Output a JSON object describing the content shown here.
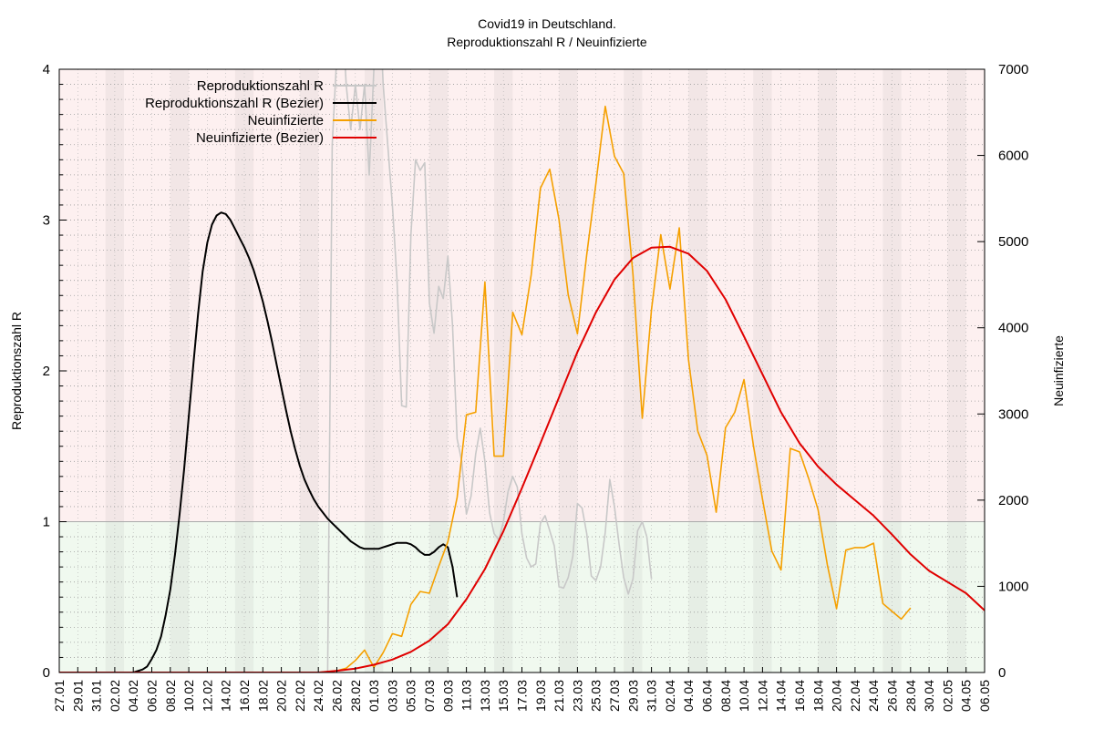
{
  "title_lines": [
    "Covid19 in Deutschland.",
    "Reproduktionszahl R / Neuinfizierte"
  ],
  "chart_data": {
    "type": "line",
    "x_tick_labels": [
      "27.01",
      "29.01",
      "31.01",
      "02.02",
      "04.02",
      "06.02",
      "08.02",
      "10.02",
      "12.02",
      "14.02",
      "16.02",
      "18.02",
      "20.02",
      "22.02",
      "24.02",
      "26.02",
      "28.02",
      "01.03",
      "03.03",
      "05.03",
      "07.03",
      "09.03",
      "11.03",
      "13.03",
      "15.03",
      "17.03",
      "19.03",
      "21.03",
      "23.03",
      "25.03",
      "27.03",
      "29.03",
      "31.03",
      "02.04",
      "04.04",
      "06.04",
      "08.04",
      "10.04",
      "12.04",
      "14.04",
      "16.04",
      "18.04",
      "20.04",
      "22.04",
      "24.04",
      "26.04",
      "28.04",
      "30.04",
      "02.05",
      "04.05",
      "06.05"
    ],
    "y_left": {
      "label": "Reproduktionszahl R",
      "min": 0,
      "max": 4,
      "ticks": [
        0,
        1,
        2,
        3,
        4
      ],
      "threshold": 1
    },
    "y_right": {
      "label": "Neuinfizierte",
      "min": 0,
      "max": 7000,
      "ticks": [
        0,
        1000,
        2000,
        3000,
        4000,
        5000,
        6000,
        7000
      ]
    },
    "grid": true,
    "legend_position": "top-left",
    "colors": {
      "zone_above": "#fdf0f0",
      "zone_below": "#f0f9ef",
      "weekend_band": "rgba(150,150,150,0.10)",
      "threshold_line": "#aaaaaa"
    },
    "series": [
      {
        "name": "Reproduktionszahl R",
        "axis": "left",
        "color": "#c8c8c8",
        "points": [
          [
            29,
            0
          ],
          [
            29.5,
            3.5
          ],
          [
            30,
            4.1
          ],
          [
            30.5,
            4.5
          ],
          [
            31,
            3.9
          ],
          [
            31.5,
            3.6
          ],
          [
            32,
            3.9
          ],
          [
            32.5,
            3.6
          ],
          [
            33,
            3.9
          ],
          [
            33.5,
            3.3
          ],
          [
            34,
            4.0
          ],
          [
            34.5,
            4.6
          ],
          [
            35,
            3.9
          ],
          [
            35.5,
            3.5
          ],
          [
            36,
            3.1
          ],
          [
            36.5,
            2.6
          ],
          [
            37,
            1.77
          ],
          [
            37.5,
            1.76
          ],
          [
            38,
            2.9
          ],
          [
            38.5,
            3.4
          ],
          [
            39,
            3.33
          ],
          [
            39.5,
            3.38
          ],
          [
            40,
            2.45
          ],
          [
            40.5,
            2.25
          ],
          [
            41,
            2.56
          ],
          [
            41.5,
            2.48
          ],
          [
            42,
            2.76
          ],
          [
            42.5,
            2.3
          ],
          [
            43,
            1.55
          ],
          [
            43.5,
            1.4
          ],
          [
            44,
            1.05
          ],
          [
            44.5,
            1.17
          ],
          [
            45,
            1.45
          ],
          [
            45.5,
            1.62
          ],
          [
            46,
            1.4
          ],
          [
            46.5,
            1.06
          ],
          [
            47,
            0.92
          ],
          [
            47.5,
            0.88
          ],
          [
            48,
            1.0
          ],
          [
            48.5,
            1.2
          ],
          [
            49,
            1.3
          ],
          [
            49.5,
            1.23
          ],
          [
            50,
            0.92
          ],
          [
            50.5,
            0.76
          ],
          [
            51,
            0.7
          ],
          [
            51.5,
            0.72
          ],
          [
            52,
            0.99
          ],
          [
            52.5,
            1.04
          ],
          [
            53,
            0.94
          ],
          [
            53.5,
            0.84
          ],
          [
            54,
            0.57
          ],
          [
            54.5,
            0.56
          ],
          [
            55,
            0.63
          ],
          [
            55.5,
            0.77
          ],
          [
            56,
            1.12
          ],
          [
            56.5,
            1.09
          ],
          [
            57,
            0.92
          ],
          [
            57.5,
            0.64
          ],
          [
            58,
            0.61
          ],
          [
            58.5,
            0.7
          ],
          [
            59,
            0.93
          ],
          [
            59.5,
            1.28
          ],
          [
            60,
            1.1
          ],
          [
            60.5,
            0.85
          ],
          [
            61,
            0.63
          ],
          [
            61.5,
            0.52
          ],
          [
            62,
            0.62
          ],
          [
            62.5,
            0.94
          ],
          [
            63,
            1.0
          ],
          [
            63.5,
            0.9
          ],
          [
            64,
            0.62
          ]
        ]
      },
      {
        "name": "Reproduktionszahl R (Bezier)",
        "axis": "left",
        "color": "#000000",
        "points": [
          [
            0,
            0
          ],
          [
            5,
            0
          ],
          [
            8,
            0
          ],
          [
            9,
            0.02
          ],
          [
            9.5,
            0.04
          ],
          [
            10,
            0.09
          ],
          [
            10.5,
            0.15
          ],
          [
            11,
            0.24
          ],
          [
            11.5,
            0.38
          ],
          [
            12,
            0.55
          ],
          [
            12.5,
            0.78
          ],
          [
            13,
            1.05
          ],
          [
            13.5,
            1.35
          ],
          [
            14,
            1.7
          ],
          [
            14.5,
            2.05
          ],
          [
            15,
            2.38
          ],
          [
            15.5,
            2.66
          ],
          [
            16,
            2.85
          ],
          [
            16.5,
            2.97
          ],
          [
            17,
            3.03
          ],
          [
            17.5,
            3.05
          ],
          [
            18,
            3.04
          ],
          [
            18.5,
            3.0
          ],
          [
            19,
            2.94
          ],
          [
            19.5,
            2.88
          ],
          [
            20,
            2.82
          ],
          [
            20.5,
            2.75
          ],
          [
            21,
            2.67
          ],
          [
            21.5,
            2.57
          ],
          [
            22,
            2.46
          ],
          [
            22.5,
            2.33
          ],
          [
            23,
            2.19
          ],
          [
            23.5,
            2.04
          ],
          [
            24,
            1.89
          ],
          [
            24.5,
            1.74
          ],
          [
            25,
            1.6
          ],
          [
            25.5,
            1.48
          ],
          [
            26,
            1.37
          ],
          [
            26.5,
            1.28
          ],
          [
            27,
            1.21
          ],
          [
            27.5,
            1.15
          ],
          [
            28,
            1.1
          ],
          [
            28.5,
            1.06
          ],
          [
            29,
            1.02
          ],
          [
            29.5,
            0.99
          ],
          [
            30,
            0.96
          ],
          [
            30.5,
            0.93
          ],
          [
            31,
            0.9
          ],
          [
            31.5,
            0.87
          ],
          [
            32,
            0.85
          ],
          [
            32.5,
            0.83
          ],
          [
            33,
            0.82
          ],
          [
            33.5,
            0.82
          ],
          [
            34,
            0.82
          ],
          [
            34.5,
            0.82
          ],
          [
            35,
            0.83
          ],
          [
            35.5,
            0.84
          ],
          [
            36,
            0.85
          ],
          [
            36.5,
            0.86
          ],
          [
            37,
            0.86
          ],
          [
            37.5,
            0.86
          ],
          [
            38,
            0.85
          ],
          [
            38.5,
            0.83
          ],
          [
            39,
            0.8
          ],
          [
            39.5,
            0.78
          ],
          [
            40,
            0.78
          ],
          [
            40.5,
            0.8
          ],
          [
            41,
            0.83
          ],
          [
            41.5,
            0.85
          ],
          [
            42,
            0.83
          ],
          [
            42.5,
            0.7
          ],
          [
            43,
            0.5
          ]
        ]
      },
      {
        "name": "Neuinfizierte",
        "axis": "right",
        "color": "#f5a000",
        "points": [
          [
            0,
            0
          ],
          [
            28,
            0
          ],
          [
            30,
            20
          ],
          [
            31,
            50
          ],
          [
            32,
            140
          ],
          [
            33,
            260
          ],
          [
            34,
            60
          ],
          [
            35,
            230
          ],
          [
            36,
            450
          ],
          [
            37,
            420
          ],
          [
            38,
            790
          ],
          [
            39,
            940
          ],
          [
            40,
            920
          ],
          [
            41,
            1230
          ],
          [
            42,
            1520
          ],
          [
            43,
            2030
          ],
          [
            44,
            2990
          ],
          [
            45,
            3020
          ],
          [
            46,
            4530
          ],
          [
            47,
            2510
          ],
          [
            48,
            2510
          ],
          [
            49,
            4180
          ],
          [
            50,
            3920
          ],
          [
            51,
            4610
          ],
          [
            52,
            5620
          ],
          [
            53,
            5840
          ],
          [
            54,
            5260
          ],
          [
            55,
            4380
          ],
          [
            56,
            3930
          ],
          [
            57,
            4850
          ],
          [
            58,
            5680
          ],
          [
            59,
            6570
          ],
          [
            60,
            5990
          ],
          [
            61,
            5790
          ],
          [
            62,
            4620
          ],
          [
            63,
            2950
          ],
          [
            64,
            4210
          ],
          [
            65,
            5080
          ],
          [
            66,
            4450
          ],
          [
            67,
            5160
          ],
          [
            68,
            3630
          ],
          [
            69,
            2800
          ],
          [
            70,
            2520
          ],
          [
            71,
            1860
          ],
          [
            72,
            2840
          ],
          [
            73,
            3020
          ],
          [
            74,
            3400
          ],
          [
            75,
            2640
          ],
          [
            76,
            2010
          ],
          [
            77,
            1410
          ],
          [
            78,
            1190
          ],
          [
            79,
            2600
          ],
          [
            80,
            2560
          ],
          [
            81,
            2250
          ],
          [
            82,
            1890
          ],
          [
            83,
            1250
          ],
          [
            84,
            740
          ],
          [
            85,
            1420
          ],
          [
            86,
            1450
          ],
          [
            87,
            1450
          ],
          [
            88,
            1500
          ],
          [
            89,
            800
          ],
          [
            90,
            710
          ],
          [
            91,
            620
          ],
          [
            92,
            750
          ]
        ]
      },
      {
        "name": "Neuinfizierte (Bezier)",
        "axis": "right",
        "color": "#e00000",
        "points": [
          [
            0,
            0
          ],
          [
            28,
            0
          ],
          [
            30,
            20
          ],
          [
            32,
            45
          ],
          [
            34,
            90
          ],
          [
            36,
            150
          ],
          [
            38,
            240
          ],
          [
            40,
            370
          ],
          [
            42,
            560
          ],
          [
            44,
            850
          ],
          [
            46,
            1200
          ],
          [
            48,
            1640
          ],
          [
            50,
            2140
          ],
          [
            52,
            2660
          ],
          [
            54,
            3190
          ],
          [
            56,
            3720
          ],
          [
            58,
            4180
          ],
          [
            60,
            4560
          ],
          [
            62,
            4810
          ],
          [
            64,
            4930
          ],
          [
            66,
            4940
          ],
          [
            68,
            4860
          ],
          [
            70,
            4660
          ],
          [
            72,
            4330
          ],
          [
            74,
            3900
          ],
          [
            76,
            3460
          ],
          [
            78,
            3020
          ],
          [
            80,
            2660
          ],
          [
            82,
            2390
          ],
          [
            84,
            2180
          ],
          [
            86,
            2000
          ],
          [
            88,
            1820
          ],
          [
            90,
            1600
          ],
          [
            92,
            1370
          ],
          [
            94,
            1180
          ],
          [
            96,
            1050
          ],
          [
            98,
            920
          ],
          [
            100,
            720
          ],
          [
            102,
            720
          ],
          [
            104,
            760
          ],
          [
            106,
            1000
          ]
        ]
      }
    ]
  }
}
